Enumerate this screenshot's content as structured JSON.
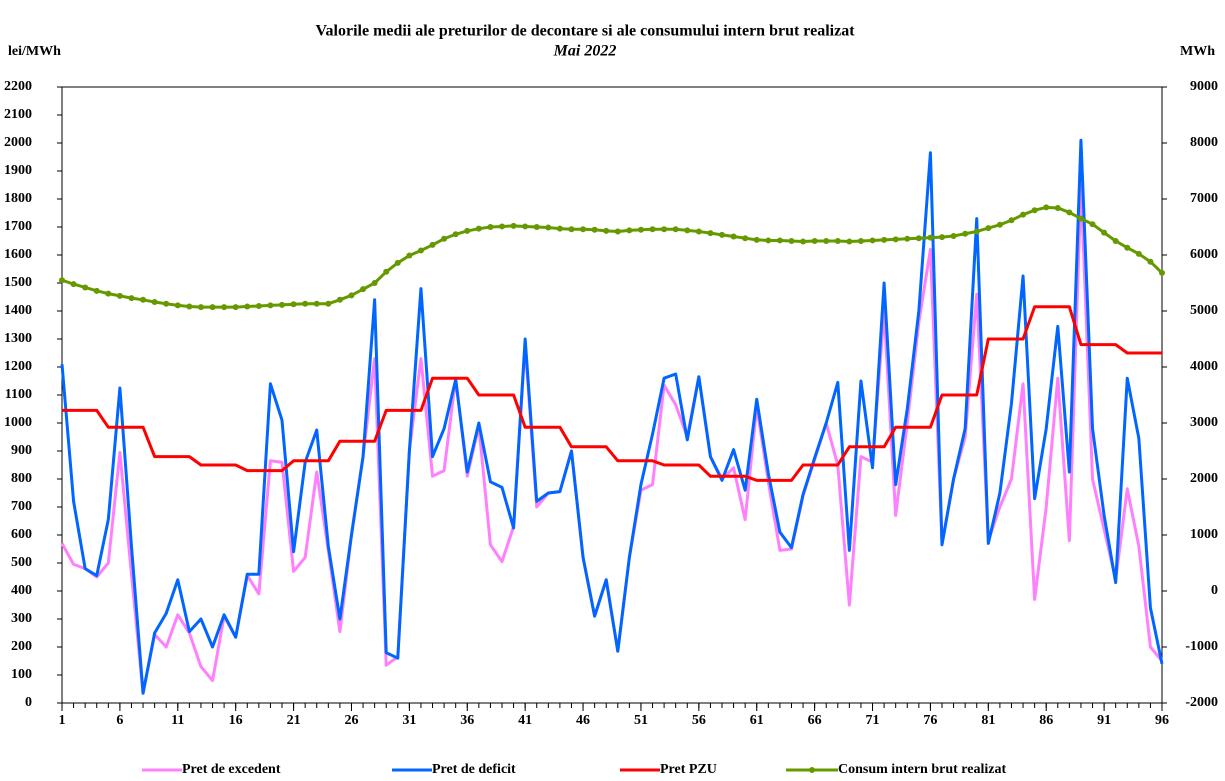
{
  "chart_data": {
    "type": "line",
    "title": "Valorile medii ale preturilor de decontare si ale consumului intern brut realizat",
    "subtitle": "Mai 2022",
    "y_label": "lei/MWh",
    "y2_label": "MWh",
    "x": [
      1,
      2,
      3,
      4,
      5,
      6,
      7,
      8,
      9,
      10,
      11,
      12,
      13,
      14,
      15,
      16,
      17,
      18,
      19,
      20,
      21,
      22,
      23,
      24,
      25,
      26,
      27,
      28,
      29,
      30,
      31,
      32,
      33,
      34,
      35,
      36,
      37,
      38,
      39,
      40,
      41,
      42,
      43,
      44,
      45,
      46,
      47,
      48,
      49,
      50,
      51,
      52,
      53,
      54,
      55,
      56,
      57,
      58,
      59,
      60,
      61,
      62,
      63,
      64,
      65,
      66,
      67,
      68,
      69,
      70,
      71,
      72,
      73,
      74,
      75,
      76,
      77,
      78,
      79,
      80,
      81,
      82,
      83,
      84,
      85,
      86,
      87,
      88,
      89,
      90,
      91,
      92,
      93,
      94,
      95,
      96
    ],
    "xlim": [
      1,
      96
    ],
    "xticks": [
      1,
      6,
      11,
      16,
      21,
      26,
      31,
      36,
      41,
      46,
      51,
      56,
      61,
      66,
      71,
      76,
      81,
      86,
      91,
      96
    ],
    "ylim": [
      0,
      2200
    ],
    "yticks": [
      0,
      100,
      200,
      300,
      400,
      500,
      600,
      700,
      800,
      900,
      1000,
      1100,
      1200,
      1300,
      1400,
      1500,
      1600,
      1700,
      1800,
      1900,
      2000,
      2100,
      2200
    ],
    "y2lim": [
      -2000,
      9000
    ],
    "y2ticks": [
      -2000,
      -1000,
      0,
      1000,
      2000,
      3000,
      4000,
      5000,
      6000,
      7000,
      8000,
      9000
    ],
    "grid": false,
    "legend": "bottom",
    "series": [
      {
        "name": "Pret de excedent",
        "color": "#ff80ff",
        "values": [
          570,
          495,
          480,
          450,
          500,
          895,
          460,
          35,
          245,
          200,
          315,
          250,
          130,
          80,
          310,
          235,
          455,
          390,
          865,
          860,
          470,
          520,
          825,
          545,
          255,
          600,
          880,
          1230,
          135,
          165,
          900,
          1230,
          810,
          830,
          1160,
          810,
          990,
          565,
          505,
          630,
          1280,
          700,
          750,
          755,
          900,
          520,
          310,
          440,
          185,
          520,
          760,
          780,
          1135,
          1065,
          950,
          1165,
          880,
          800,
          840,
          655,
          1060,
          790,
          545,
          550,
          740,
          870,
          1000,
          850,
          350,
          880,
          860,
          1400,
          670,
          1000,
          1360,
          1620,
          570,
          800,
          950,
          1460,
          580,
          700,
          800,
          1140,
          370,
          700,
          1160,
          580,
          1850,
          800,
          620,
          440,
          765,
          560,
          200,
          150
        ]
      },
      {
        "name": "Pret de deficit",
        "color": "#0066ff",
        "values": [
          1210,
          720,
          480,
          455,
          655,
          1125,
          560,
          35,
          250,
          320,
          440,
          255,
          300,
          200,
          315,
          235,
          460,
          460,
          1140,
          1010,
          540,
          860,
          975,
          560,
          300,
          600,
          880,
          1440,
          180,
          160,
          900,
          1480,
          880,
          980,
          1155,
          825,
          1000,
          790,
          770,
          625,
          1300,
          720,
          750,
          755,
          900,
          520,
          310,
          440,
          185,
          520,
          780,
          960,
          1160,
          1175,
          940,
          1165,
          880,
          795,
          905,
          760,
          1085,
          820,
          610,
          555,
          745,
          875,
          1000,
          1145,
          545,
          1150,
          840,
          1500,
          780,
          1050,
          1400,
          1965,
          565,
          800,
          980,
          1730,
          570,
          750,
          1070,
          1525,
          730,
          980,
          1345,
          825,
          2010,
          980,
          670,
          430,
          1160,
          945,
          340,
          140
        ]
      },
      {
        "name": "Pret PZU",
        "color": "#ff0000",
        "values": [
          1045,
          1045,
          1045,
          1045,
          985,
          985,
          985,
          985,
          880,
          880,
          880,
          880,
          850,
          850,
          850,
          850,
          830,
          830,
          830,
          830,
          865,
          865,
          865,
          865,
          935,
          935,
          935,
          935,
          1045,
          1045,
          1045,
          1045,
          1160,
          1160,
          1160,
          1160,
          1100,
          1100,
          1100,
          1100,
          985,
          985,
          985,
          985,
          915,
          915,
          915,
          915,
          865,
          865,
          865,
          865,
          850,
          850,
          850,
          850,
          810,
          810,
          810,
          810,
          795,
          795,
          795,
          795,
          850,
          850,
          850,
          850,
          915,
          915,
          915,
          915,
          985,
          985,
          985,
          985,
          1100,
          1100,
          1100,
          1100,
          1300,
          1300,
          1300,
          1300,
          1415,
          1415,
          1415,
          1415,
          1280,
          1280,
          1280,
          1280,
          1250,
          1250,
          1250,
          1250
        ]
      },
      {
        "name": "Consum intern brut realizat",
        "color": "#669900",
        "axis": "y2",
        "markers": true,
        "values": [
          5550,
          5480,
          5420,
          5360,
          5310,
          5270,
          5230,
          5200,
          5160,
          5130,
          5100,
          5080,
          5070,
          5070,
          5070,
          5070,
          5080,
          5090,
          5100,
          5110,
          5120,
          5130,
          5130,
          5130,
          5200,
          5280,
          5390,
          5500,
          5700,
          5860,
          5990,
          6080,
          6180,
          6290,
          6370,
          6430,
          6470,
          6500,
          6510,
          6520,
          6510,
          6500,
          6490,
          6470,
          6460,
          6460,
          6450,
          6430,
          6420,
          6440,
          6450,
          6460,
          6460,
          6460,
          6440,
          6420,
          6390,
          6360,
          6330,
          6300,
          6270,
          6260,
          6260,
          6250,
          6240,
          6250,
          6250,
          6250,
          6240,
          6250,
          6260,
          6270,
          6280,
          6290,
          6300,
          6310,
          6320,
          6340,
          6380,
          6420,
          6480,
          6540,
          6620,
          6720,
          6800,
          6850,
          6840,
          6760,
          6650,
          6550,
          6400,
          6250,
          6130,
          6020,
          5880,
          5680
        ]
      }
    ]
  }
}
